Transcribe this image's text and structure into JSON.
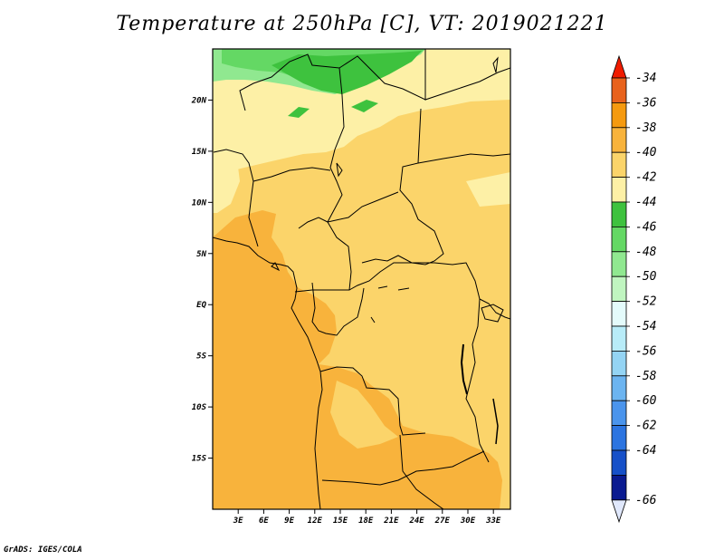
{
  "title": "Temperature at 250hPa [C], VT: 2019021221",
  "footer": "GrADS: IGES/COLA",
  "map": {
    "lon_range": [
      0,
      35
    ],
    "lat_range": [
      -20,
      25
    ],
    "lat_ticks": [
      {
        "value": 20,
        "label": "20N"
      },
      {
        "value": 15,
        "label": "15N"
      },
      {
        "value": 10,
        "label": "10N"
      },
      {
        "value": 5,
        "label": "5N"
      },
      {
        "value": 0,
        "label": "EQ"
      },
      {
        "value": -5,
        "label": "5S"
      },
      {
        "value": -10,
        "label": "10S"
      },
      {
        "value": -15,
        "label": "15S"
      }
    ],
    "lon_ticks": [
      {
        "value": 3,
        "label": "3E"
      },
      {
        "value": 6,
        "label": "6E"
      },
      {
        "value": 9,
        "label": "9E"
      },
      {
        "value": 12,
        "label": "12E"
      },
      {
        "value": 15,
        "label": "15E"
      },
      {
        "value": 18,
        "label": "18E"
      },
      {
        "value": 21,
        "label": "21E"
      },
      {
        "value": 24,
        "label": "24E"
      },
      {
        "value": 27,
        "label": "27E"
      },
      {
        "value": 30,
        "label": "30E"
      },
      {
        "value": 33,
        "label": "33E"
      }
    ]
  },
  "colorbar": {
    "levels": [
      {
        "label": "-34",
        "color": "#e8621c"
      },
      {
        "label": "-36",
        "color": "#f59a10"
      },
      {
        "label": "-38",
        "color": "#f8b33c"
      },
      {
        "label": "-40",
        "color": "#fbd46a"
      },
      {
        "label": "-42",
        "color": "#fdf0a6"
      },
      {
        "label": "-44",
        "color": "#3ec23e"
      },
      {
        "label": "-46",
        "color": "#64d864"
      },
      {
        "label": "-48",
        "color": "#90e890"
      },
      {
        "label": "-50",
        "color": "#c0f5c0"
      },
      {
        "label": "-52",
        "color": "#e4fbfb"
      },
      {
        "label": "-54",
        "color": "#b8ecf8"
      },
      {
        "label": "-56",
        "color": "#94d4f4"
      },
      {
        "label": "-58",
        "color": "#6cb4f0"
      },
      {
        "label": "-60",
        "color": "#4a94ec"
      },
      {
        "label": "-62",
        "color": "#2c74e0"
      },
      {
        "label": "-64",
        "color": "#1650c8"
      },
      {
        "label": "-66",
        "color": "#0a1a90"
      }
    ],
    "top_cap_color": "#f01c00",
    "bottom_cap_color": "#e0e8fc"
  }
}
